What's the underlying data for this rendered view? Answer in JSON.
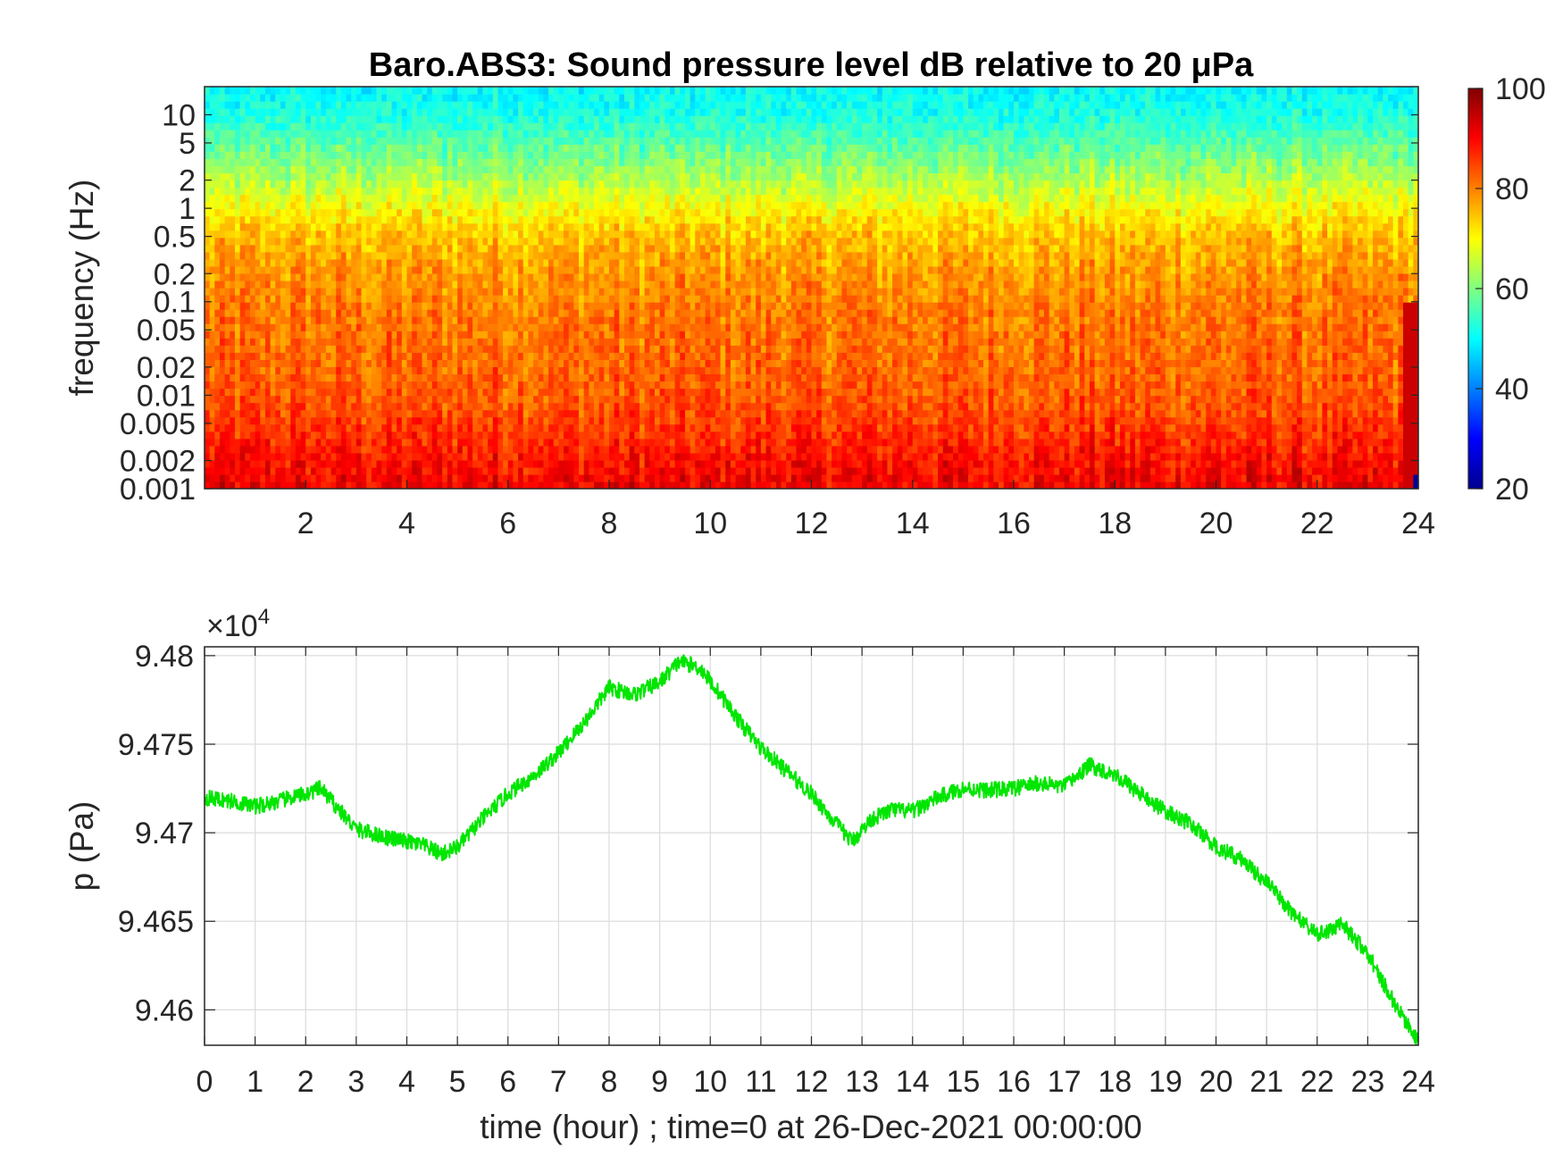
{
  "colors": {
    "line": "#00e600",
    "grid": "#dcdcdc",
    "axis": "#262626",
    "colormap": "jet"
  },
  "chart_data": [
    {
      "type": "heatmap",
      "title": "Baro.ABS3: Sound pressure level dB relative to 20 μPa",
      "xlabel": "",
      "ylabel": "frequency (Hz)",
      "xlim": [
        0,
        24
      ],
      "x_ticks": [
        "2",
        "4",
        "6",
        "8",
        "10",
        "12",
        "14",
        "16",
        "18",
        "20",
        "22",
        "24"
      ],
      "y_scale": "log",
      "ylim": [
        0.001,
        20
      ],
      "y_ticks": [
        "0.001",
        "0.002",
        "0.005",
        "0.01",
        "0.02",
        "0.05",
        "0.1",
        "0.2",
        "0.5",
        "1",
        "2",
        "5",
        "10"
      ],
      "colorbar": {
        "range": [
          20,
          100
        ],
        "ticks": [
          "20",
          "40",
          "60",
          "80",
          "100"
        ]
      },
      "level_profile": {
        "frequency_hz": [
          0.001,
          0.002,
          0.005,
          0.01,
          0.02,
          0.05,
          0.1,
          0.2,
          0.5,
          1,
          2,
          5,
          10,
          20
        ],
        "spl_db": [
          91,
          89,
          85,
          83,
          82,
          81,
          80,
          78,
          75,
          70,
          64,
          57,
          52,
          50
        ]
      }
    },
    {
      "type": "line",
      "xlabel": "time (hour) ; time=0 at 26-Dec-2021 00:00:00",
      "ylabel": "p (Pa)",
      "y_exponent": "×10",
      "y_exponent_power": "4",
      "xlim": [
        0,
        24
      ],
      "ylim": [
        9.458,
        9.4805
      ],
      "x_ticks": [
        "0",
        "1",
        "2",
        "3",
        "4",
        "5",
        "6",
        "7",
        "8",
        "9",
        "10",
        "11",
        "12",
        "13",
        "14",
        "15",
        "16",
        "17",
        "18",
        "19",
        "20",
        "21",
        "22",
        "23",
        "24"
      ],
      "y_ticks": [
        "9.46",
        "9.465",
        "9.47",
        "9.475",
        "9.48"
      ],
      "y_tick_values": [
        9.46,
        9.465,
        9.47,
        9.475,
        9.48
      ],
      "grid": true,
      "series": [
        {
          "x": [
            0,
            0.5,
            1,
            1.5,
            2,
            2.3,
            2.6,
            3,
            3.5,
            4,
            4.3,
            4.7,
            5,
            5.5,
            6,
            6.5,
            7,
            7.5,
            8,
            8.5,
            9,
            9.4,
            9.8,
            10.2,
            10.6,
            11,
            11.5,
            12,
            12.4,
            12.8,
            13.2,
            13.6,
            14,
            14.5,
            15,
            15.5,
            16,
            16.5,
            17,
            17.5,
            18,
            18.5,
            19,
            19.5,
            20,
            20.5,
            21,
            21.5,
            22,
            22.5,
            23,
            23.5,
            24
          ],
          "y": [
            9.472,
            9.4718,
            9.4715,
            9.4718,
            9.4722,
            9.4725,
            9.4715,
            9.4702,
            9.4698,
            9.4695,
            9.4693,
            9.4688,
            9.4692,
            9.4708,
            9.4722,
            9.4732,
            9.4745,
            9.4762,
            9.4782,
            9.4778,
            9.4785,
            9.4797,
            9.4793,
            9.4778,
            9.4762,
            9.4748,
            9.4735,
            9.4722,
            9.4708,
            9.4695,
            9.4708,
            9.4713,
            9.4712,
            9.472,
            9.4725,
            9.4724,
            9.4725,
            9.4728,
            9.4726,
            9.4738,
            9.4733,
            9.4722,
            9.4712,
            9.4705,
            9.4692,
            9.4685,
            9.4672,
            9.4655,
            9.4642,
            9.4648,
            9.4632,
            9.4605,
            9.4582
          ]
        }
      ]
    }
  ]
}
